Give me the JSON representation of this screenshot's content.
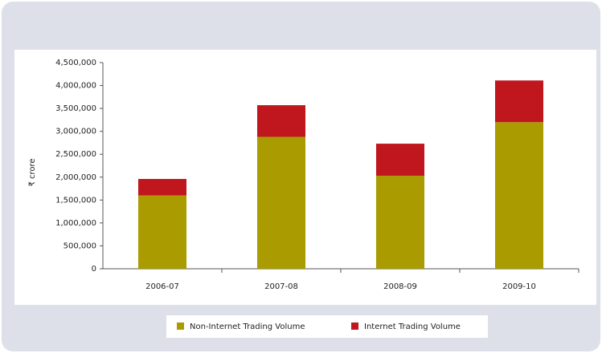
{
  "chart_data": {
    "type": "stacked_bar",
    "y_label": "₹ crore",
    "categories": [
      "2006-07",
      "2007-08",
      "2008-09",
      "2009-10"
    ],
    "series": [
      {
        "name": "Non-Internet Trading Volume",
        "color": "#a99b00",
        "values": [
          1600000,
          2880000,
          2030000,
          3200000
        ]
      },
      {
        "name": "Internet Trading Volume",
        "color": "#c0161e",
        "values": [
          360000,
          690000,
          700000,
          910000
        ]
      }
    ],
    "ylim": [
      0,
      4500000
    ],
    "yticks": [
      0,
      {
        "value": 500000,
        "label": "500,000"
      },
      {
        "value": 1000000,
        "label": "1,000,000"
      },
      {
        "value": 1500000,
        "label": "1,500,000"
      },
      {
        "value": 2000000,
        "label": "2,000,000"
      },
      {
        "value": 2500000,
        "label": "2,500,000"
      },
      {
        "value": 3000000,
        "label": "3,000,000"
      },
      {
        "value": 3500000,
        "label": "3,500,000"
      },
      {
        "value": 4000000,
        "label": "4,000,000"
      },
      {
        "value": 4500000,
        "label": "4,500,000"
      }
    ],
    "grid": false,
    "legend": "bottom"
  }
}
